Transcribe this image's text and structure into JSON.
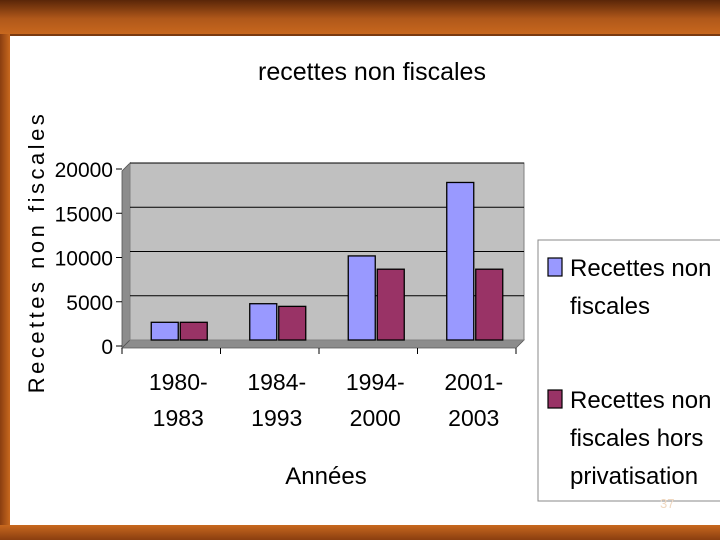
{
  "chart_data": {
    "type": "bar",
    "title": "recettes non fiscales",
    "xlabel": "Années",
    "ylabel": "Recettes non fiscales",
    "categories": [
      [
        "1980-",
        "1983"
      ],
      [
        "1984-",
        "1993"
      ],
      [
        "1994-",
        "2000"
      ],
      [
        "2001-",
        "2003"
      ]
    ],
    "series": [
      {
        "name": [
          "Recettes non",
          "fiscales"
        ],
        "values": [
          2000,
          4100,
          9500,
          17800
        ],
        "color": "#9999ff"
      },
      {
        "name": [
          "Recettes non",
          "fiscales hors",
          "privatisation"
        ],
        "values": [
          2000,
          3800,
          8000,
          8000
        ],
        "color": "#993366"
      }
    ],
    "ylim": [
      0,
      20000
    ],
    "yticks": [
      "0",
      "5000",
      "10000",
      "15000",
      "20000"
    ],
    "grid": true,
    "legend_position": "right",
    "plot_background": "#c0c0c0"
  },
  "page_number": "37"
}
